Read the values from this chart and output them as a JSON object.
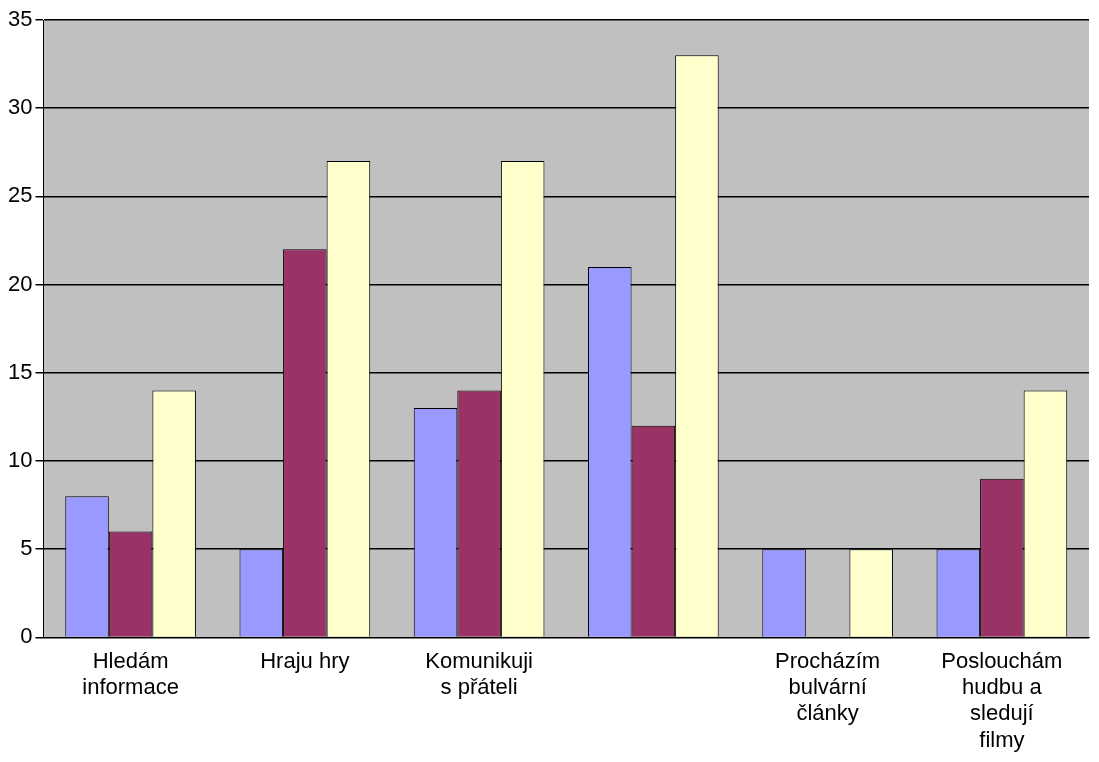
{
  "chart_data": {
    "type": "bar",
    "categories": [
      "Hledám informace",
      "Hraju hry",
      "Komunikuji s přáteli",
      null,
      "Procházím bulvární články",
      "Poslouchám hudbu a sledují filmy"
    ],
    "series": [
      {
        "color": "#9999ff",
        "values": [
          8,
          5,
          13,
          21,
          5,
          5
        ]
      },
      {
        "color": "#993366",
        "values": [
          6,
          22,
          14,
          12,
          0,
          9
        ]
      },
      {
        "color": "#ffffcc",
        "values": [
          14,
          27,
          27,
          33,
          5,
          14
        ]
      }
    ],
    "ylim": [
      0,
      35
    ],
    "yticks": [
      0,
      5,
      10,
      15,
      20,
      25,
      30,
      35
    ],
    "grid": "y",
    "legend": false
  }
}
